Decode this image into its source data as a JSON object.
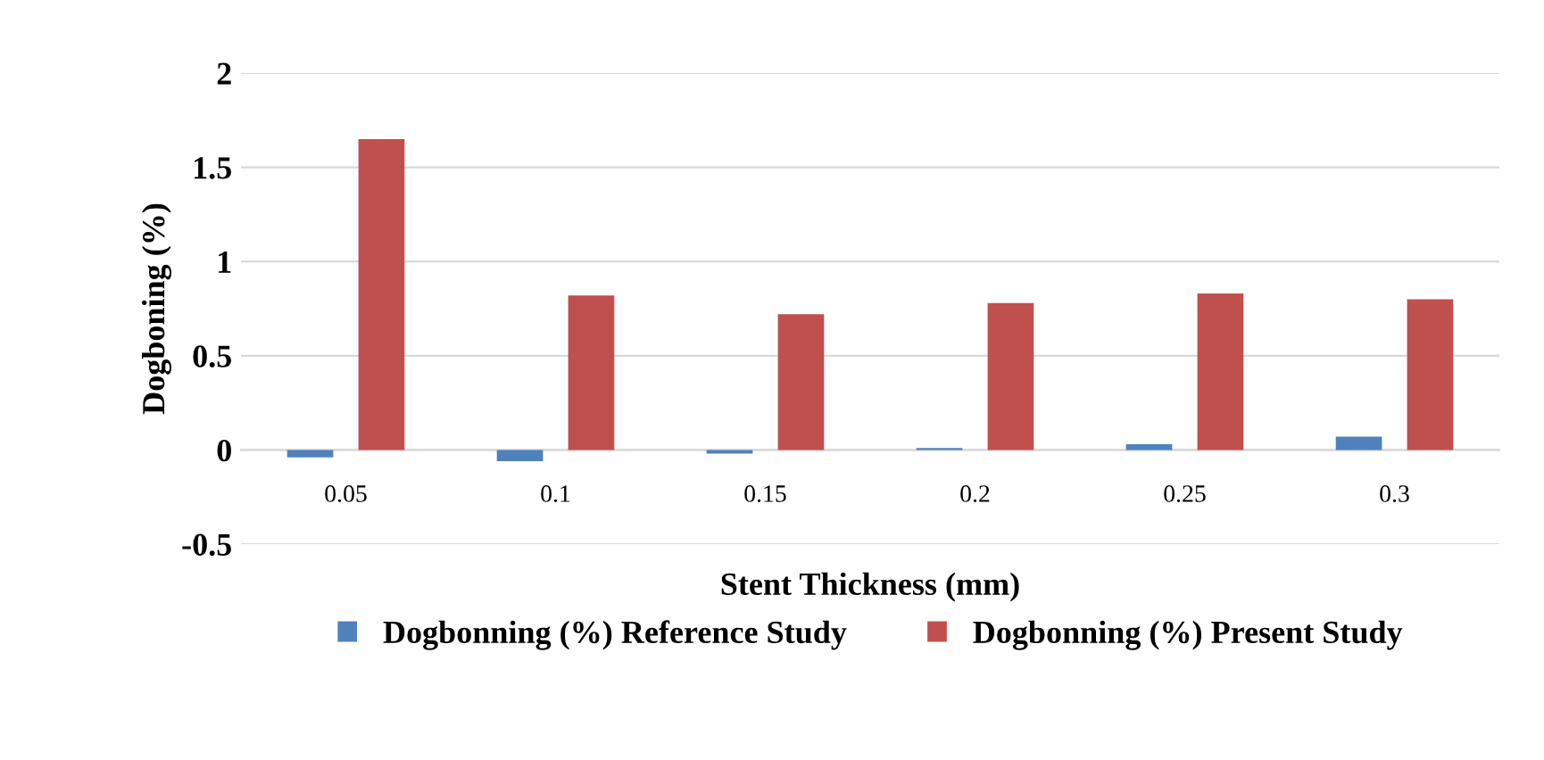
{
  "chart_data": {
    "type": "bar",
    "xlabel": "Stent Thickness (mm)",
    "ylabel": "Dogboning (%)",
    "categories": [
      "0.05",
      "0.1",
      "0.15",
      "0.2",
      "0.25",
      "0.3"
    ],
    "series": [
      {
        "name": "Dogbonning (%) Reference Study",
        "color": "#4f81bd",
        "values": [
          -0.04,
          -0.06,
          -0.02,
          0.01,
          0.03,
          0.07
        ]
      },
      {
        "name": "Dogbonning (%) Present Study",
        "color": "#c0504d",
        "values": [
          1.65,
          0.82,
          0.72,
          0.78,
          0.83,
          0.8
        ]
      }
    ],
    "ylim": [
      -0.5,
      2
    ],
    "yticks": [
      -0.5,
      0,
      0.5,
      1,
      1.5,
      2
    ],
    "grid": "y",
    "legend": "bottom"
  }
}
